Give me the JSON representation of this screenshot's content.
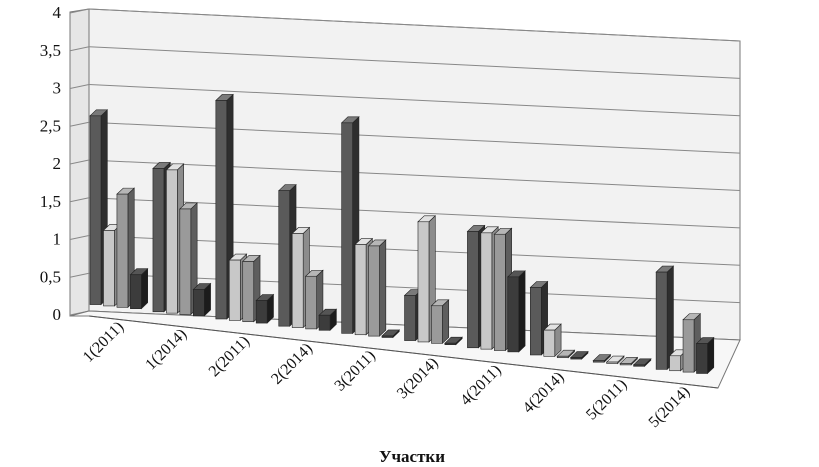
{
  "chart_data": {
    "type": "bar",
    "title": "",
    "xlabel": "Участки",
    "ylabel": "",
    "ylim": [
      0,
      4
    ],
    "y_ticks": [
      "0",
      "0,5",
      "1",
      "1,5",
      "2",
      "2,5",
      "3",
      "3,5",
      "4"
    ],
    "grid": true,
    "legend": "none",
    "categories": [
      "1(2011)",
      "1(2014)",
      "2(2011)",
      "2(2014)",
      "3(2011)",
      "3(2014)",
      "4(2011)",
      "4(2014)",
      "5(2011)",
      "5(2014)"
    ],
    "series": [
      {
        "values": [
          2.5,
          1.9,
          2.9,
          1.8,
          2.8,
          0.6,
          1.55,
          0.9,
          0.0,
          1.3
        ]
      },
      {
        "values": [
          1.0,
          1.9,
          0.8,
          1.25,
          1.2,
          1.6,
          1.55,
          0.35,
          0.0,
          0.2
        ]
      },
      {
        "values": [
          1.5,
          1.4,
          0.8,
          0.7,
          1.2,
          0.5,
          1.55,
          0.0,
          0.0,
          0.7
        ]
      },
      {
        "values": [
          0.45,
          0.35,
          0.3,
          0.2,
          0.0,
          0.0,
          1.0,
          0.0,
          0.0,
          0.4
        ]
      }
    ],
    "colors": {
      "series_front": [
        "#5a5a5a",
        "#c8c8c8",
        "#9a9a9a",
        "#3c3c3c"
      ],
      "series_side": [
        "#2e2e2e",
        "#8c8c8c",
        "#5e5e5e",
        "#1c1c1c"
      ],
      "series_top": [
        "#7a7a7a",
        "#e2e2e2",
        "#b6b6b6",
        "#555555"
      ],
      "wall": "#f2f2f2",
      "grid": "#888888",
      "axis": "#777777"
    }
  }
}
